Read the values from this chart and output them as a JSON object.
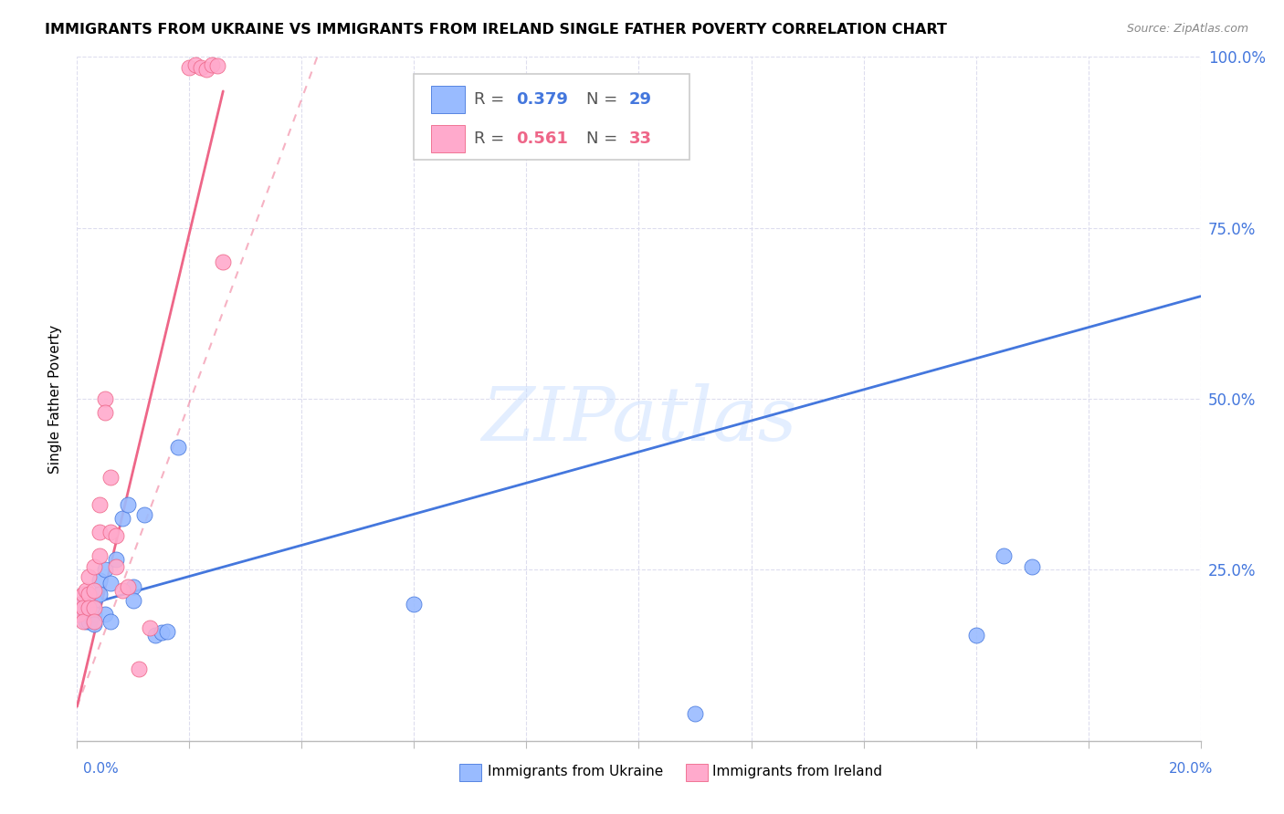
{
  "title": "IMMIGRANTS FROM UKRAINE VS IMMIGRANTS FROM IRELAND SINGLE FATHER POVERTY CORRELATION CHART",
  "source": "Source: ZipAtlas.com",
  "ylabel": "Single Father Poverty",
  "legend_ukraine": "Immigrants from Ukraine",
  "legend_ireland": "Immigrants from Ireland",
  "r_ukraine": "0.379",
  "n_ukraine": "29",
  "r_ireland": "0.561",
  "n_ireland": "33",
  "color_ukraine": "#99BBFF",
  "color_ireland": "#FFAACC",
  "color_ukraine_line": "#4477DD",
  "color_ireland_line": "#EE6688",
  "ukraine_x": [
    0.0005,
    0.001,
    0.0015,
    0.002,
    0.002,
    0.003,
    0.003,
    0.003,
    0.004,
    0.004,
    0.005,
    0.005,
    0.006,
    0.006,
    0.007,
    0.008,
    0.009,
    0.01,
    0.01,
    0.012,
    0.014,
    0.015,
    0.016,
    0.018,
    0.06,
    0.11,
    0.16,
    0.165,
    0.17
  ],
  "ukraine_y": [
    0.195,
    0.2,
    0.175,
    0.215,
    0.175,
    0.205,
    0.185,
    0.17,
    0.235,
    0.215,
    0.25,
    0.185,
    0.23,
    0.175,
    0.265,
    0.325,
    0.345,
    0.225,
    0.205,
    0.33,
    0.155,
    0.158,
    0.16,
    0.43,
    0.2,
    0.04,
    0.155,
    0.27,
    0.255
  ],
  "ireland_x": [
    0.0003,
    0.0005,
    0.001,
    0.001,
    0.001,
    0.0015,
    0.002,
    0.002,
    0.002,
    0.003,
    0.003,
    0.003,
    0.003,
    0.004,
    0.004,
    0.004,
    0.005,
    0.005,
    0.006,
    0.006,
    0.007,
    0.007,
    0.008,
    0.009,
    0.011,
    0.013,
    0.02,
    0.021,
    0.022,
    0.023,
    0.024,
    0.025,
    0.026
  ],
  "ireland_y": [
    0.185,
    0.2,
    0.215,
    0.195,
    0.175,
    0.22,
    0.24,
    0.215,
    0.195,
    0.255,
    0.22,
    0.195,
    0.175,
    0.345,
    0.305,
    0.27,
    0.5,
    0.48,
    0.385,
    0.305,
    0.3,
    0.255,
    0.22,
    0.225,
    0.105,
    0.165,
    0.985,
    0.988,
    0.985,
    0.982,
    0.989,
    0.987,
    0.7
  ],
  "xlim": [
    0.0,
    0.2
  ],
  "ylim": [
    0.0,
    1.0
  ],
  "yticks": [
    0.0,
    0.25,
    0.5,
    0.75,
    1.0
  ],
  "ytick_labels": [
    "",
    "25.0%",
    "50.0%",
    "75.0%",
    "100.0%"
  ],
  "xtick_color": "#4477DD",
  "watermark_text": "ZIPatlas",
  "watermark_color": "#C8DEFF",
  "watermark_alpha": 0.5
}
